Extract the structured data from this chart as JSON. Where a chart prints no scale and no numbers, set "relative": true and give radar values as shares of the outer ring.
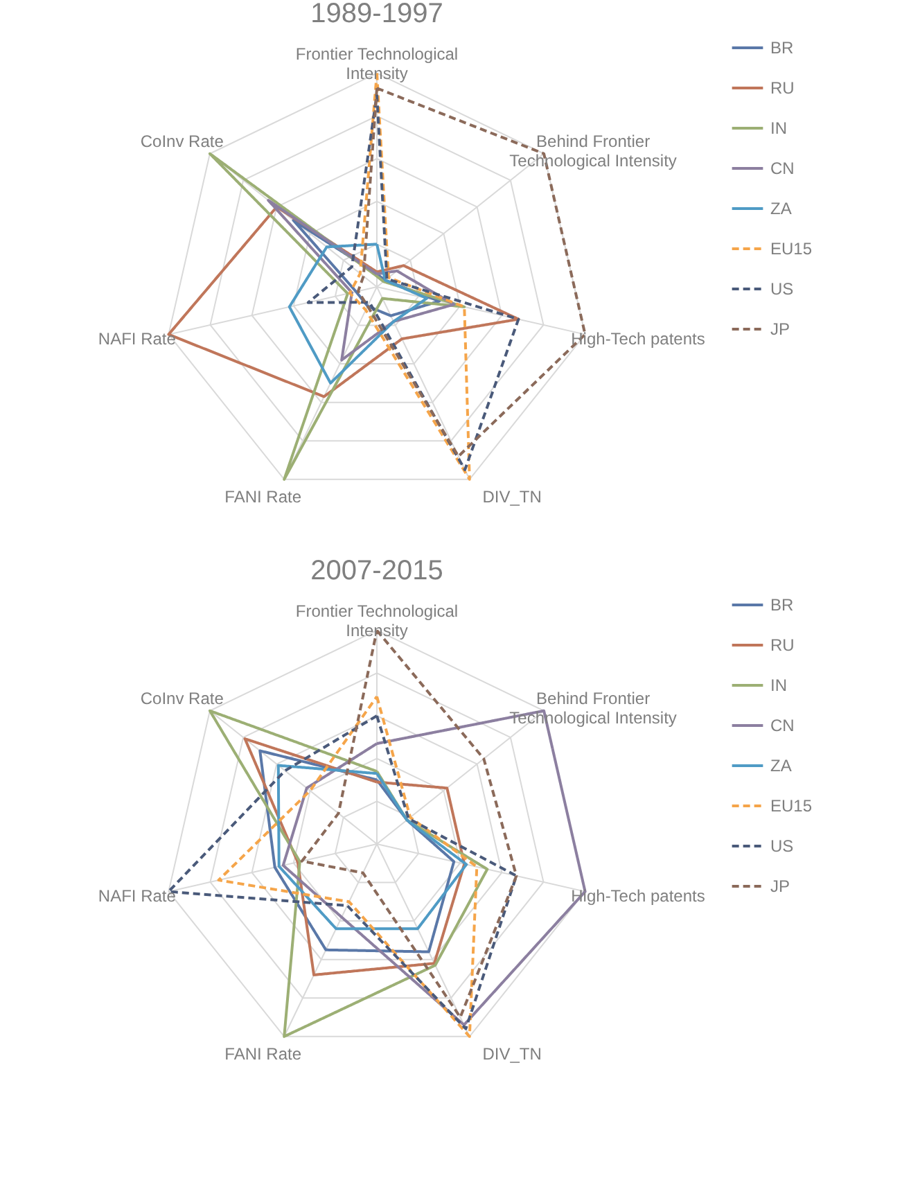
{
  "chart_data": [
    {
      "type": "radar",
      "title": "1989-1997",
      "relative": true,
      "legend": "right",
      "categories": [
        "Frontier Technological Intensity",
        "Behind Frontier Technological Intensity",
        "High-Tech patents",
        "DIV_TN",
        "FANI Rate",
        "NAFI Rate",
        "CoInv Rate"
      ],
      "series": [
        {
          "name": "BR",
          "color": "#5a78a8",
          "line_style": "solid",
          "values": [
            0.06,
            0.05,
            0.3,
            0.15,
            0.1,
            0.1,
            0.5
          ]
        },
        {
          "name": "RU",
          "color": "#c0765a",
          "line_style": "solid",
          "values": [
            0.07,
            0.16,
            0.68,
            0.27,
            0.57,
            1.0,
            0.6
          ]
        },
        {
          "name": "IN",
          "color": "#9caf74",
          "line_style": "solid",
          "values": [
            0.05,
            0.04,
            0.42,
            0.06,
            1.0,
            0.14,
            1.0
          ]
        },
        {
          "name": "CN",
          "color": "#8c7fa0",
          "line_style": "solid",
          "values": [
            0.06,
            0.12,
            0.37,
            0.18,
            0.38,
            0.12,
            0.65
          ]
        },
        {
          "name": "ZA",
          "color": "#4f9bc5",
          "line_style": "solid",
          "values": [
            0.2,
            0.05,
            0.24,
            0.18,
            0.5,
            0.42,
            0.3
          ]
        },
        {
          "name": "EU15",
          "color": "#f5a54a",
          "line_style": "dashed",
          "values": [
            1.0,
            0.07,
            0.42,
            1.0,
            0.12,
            0.13,
            0.1
          ]
        },
        {
          "name": "US",
          "color": "#4a5a7a",
          "line_style": "dashed",
          "values": [
            0.9,
            0.06,
            0.68,
            0.95,
            0.08,
            0.33,
            0.15
          ]
        },
        {
          "name": "JP",
          "color": "#8b6a5a",
          "line_style": "dashed",
          "values": [
            0.93,
            1.0,
            1.0,
            0.88,
            0.1,
            0.09,
            0.08
          ]
        }
      ]
    },
    {
      "type": "radar",
      "title": "2007-2015",
      "relative": true,
      "legend": "right",
      "categories": [
        "Frontier Technological Intensity",
        "Behind Frontier Technological Intensity",
        "High-Tech patents",
        "DIV_TN",
        "FANI Rate",
        "NAFI Rate",
        "CoInv Rate"
      ],
      "series": [
        {
          "name": "BR",
          "color": "#5a78a8",
          "line_style": "solid",
          "values": [
            0.3,
            0.18,
            0.37,
            0.56,
            0.55,
            0.49,
            0.7
          ]
        },
        {
          "name": "RU",
          "color": "#c0765a",
          "line_style": "solid",
          "values": [
            0.29,
            0.42,
            0.42,
            0.62,
            0.68,
            0.38,
            0.79
          ]
        },
        {
          "name": "IN",
          "color": "#9caf74",
          "line_style": "solid",
          "values": [
            0.34,
            0.18,
            0.53,
            0.63,
            1.0,
            0.37,
            1.0
          ]
        },
        {
          "name": "CN",
          "color": "#8c7fa0",
          "line_style": "solid",
          "values": [
            0.47,
            1.0,
            1.0,
            0.94,
            0.38,
            0.45,
            0.42
          ]
        },
        {
          "name": "ZA",
          "color": "#4f9bc5",
          "line_style": "solid",
          "values": [
            0.33,
            0.18,
            0.43,
            0.44,
            0.44,
            0.47,
            0.59
          ]
        },
        {
          "name": "EU15",
          "color": "#f5a54a",
          "line_style": "dashed",
          "values": [
            0.69,
            0.2,
            0.48,
            1.0,
            0.3,
            0.76,
            0.4
          ]
        },
        {
          "name": "US",
          "color": "#4a5a7a",
          "line_style": "dashed",
          "values": [
            0.6,
            0.19,
            0.67,
            0.96,
            0.32,
            1.0,
            0.55
          ]
        },
        {
          "name": "JP",
          "color": "#8b6a5a",
          "line_style": "dashed",
          "values": [
            1.0,
            0.64,
            0.67,
            0.9,
            0.15,
            0.36,
            0.23
          ]
        }
      ]
    }
  ]
}
